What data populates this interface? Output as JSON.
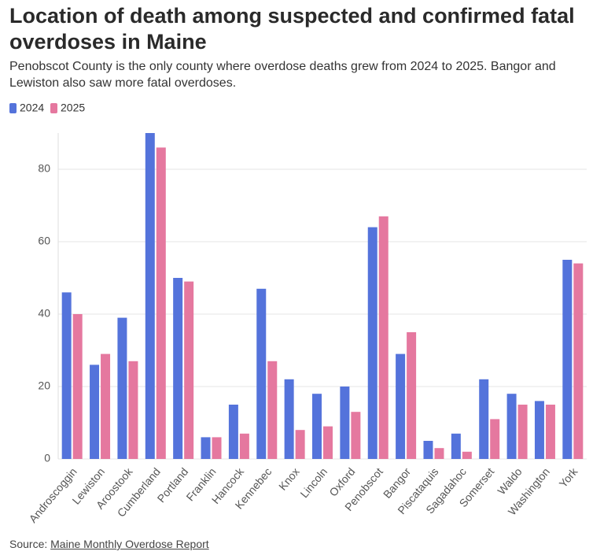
{
  "chart_data": {
    "type": "bar",
    "title": "Location of death among suspected and confirmed fatal overdoses in Maine",
    "subtitle": "Penobscot County is the only county where overdose deaths grew from 2024 to 2025. Bangor and Lewiston also saw more fatal overdoses.",
    "source_label": "Source:",
    "source_link": "Maine Monthly Overdose Report",
    "categories": [
      "Androscoggin",
      "Lewiston",
      "Aroostook",
      "Cumberland",
      "Portland",
      "Franklin",
      "Hancock",
      "Kennebec",
      "Knox",
      "Lincoln",
      "Oxford",
      "Penobscot",
      "Bangor",
      "Piscataquis",
      "Sagadahoc",
      "Somerset",
      "Waldo",
      "Washington",
      "York"
    ],
    "series": [
      {
        "name": "2024",
        "color": "#5473db",
        "values": [
          46,
          26,
          39,
          90,
          50,
          6,
          15,
          47,
          22,
          18,
          20,
          64,
          29,
          5,
          7,
          22,
          18,
          16,
          55
        ]
      },
      {
        "name": "2025",
        "color": "#e5789f",
        "values": [
          40,
          29,
          27,
          86,
          49,
          6,
          7,
          27,
          8,
          9,
          13,
          67,
          35,
          3,
          2,
          11,
          15,
          15,
          54
        ]
      }
    ],
    "ylim": [
      0,
      90
    ],
    "yticks": [
      0,
      20,
      40,
      60,
      80
    ],
    "grid": true
  }
}
